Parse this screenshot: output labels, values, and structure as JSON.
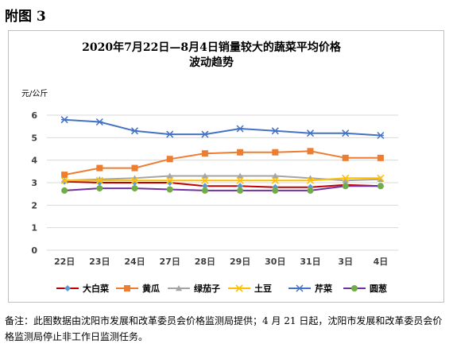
{
  "page_heading": "附图 3",
  "note": "备注：此图数据由沈阳市发展和改革委员会价格监测局提供；4 月 21 日起，沈阳市发展和改革委员会价格监测局停止非工作日监测任务。",
  "chart_data": {
    "type": "line",
    "title_lines": [
      "2020年7月22日—8月4日销量较大的蔬菜平均价格",
      "波动趋势"
    ],
    "ylabel": "元/公斤",
    "xlabel": "",
    "ylim": [
      0,
      6
    ],
    "yticks": [
      0,
      1,
      2,
      3,
      4,
      5,
      6
    ],
    "grid": true,
    "legend_position": "bottom",
    "categories": [
      "22日",
      "23日",
      "24日",
      "27日",
      "28日",
      "29日",
      "30日",
      "31日",
      "3日",
      "4日"
    ],
    "series": [
      {
        "name": "大白菜",
        "color": "#c00000",
        "marker": "diamond-icon",
        "marker_color": "#5b9bd5",
        "values": [
          3.05,
          3.0,
          3.0,
          3.0,
          2.85,
          2.85,
          2.8,
          2.8,
          2.9,
          2.85
        ]
      },
      {
        "name": "黄瓜",
        "color": "#ed7d31",
        "marker": "square-icon",
        "marker_color": "#ed7d31",
        "values": [
          3.35,
          3.65,
          3.65,
          4.05,
          4.3,
          4.35,
          4.35,
          4.4,
          4.1,
          4.1
        ]
      },
      {
        "name": "绿茄子",
        "color": "#a5a5a5",
        "marker": "triangle-icon",
        "marker_color": "#a5a5a5",
        "values": [
          3.1,
          3.15,
          3.2,
          3.3,
          3.3,
          3.3,
          3.3,
          3.2,
          3.1,
          3.15
        ]
      },
      {
        "name": "土豆",
        "color": "#ffc000",
        "marker": "x-icon",
        "marker_color": "#ffc000",
        "values": [
          3.1,
          3.1,
          3.1,
          3.1,
          3.1,
          3.1,
          3.1,
          3.1,
          3.2,
          3.2
        ]
      },
      {
        "name": "芹菜",
        "color": "#4472c4",
        "marker": "star-icon",
        "marker_color": "#4472c4",
        "values": [
          5.8,
          5.7,
          5.3,
          5.15,
          5.15,
          5.4,
          5.3,
          5.2,
          5.2,
          5.1
        ]
      },
      {
        "name": "圆葱",
        "color": "#7030a0",
        "marker": "circle-icon",
        "marker_color": "#70ad47",
        "values": [
          2.65,
          2.75,
          2.75,
          2.7,
          2.65,
          2.65,
          2.65,
          2.65,
          2.85,
          2.85
        ]
      }
    ]
  }
}
